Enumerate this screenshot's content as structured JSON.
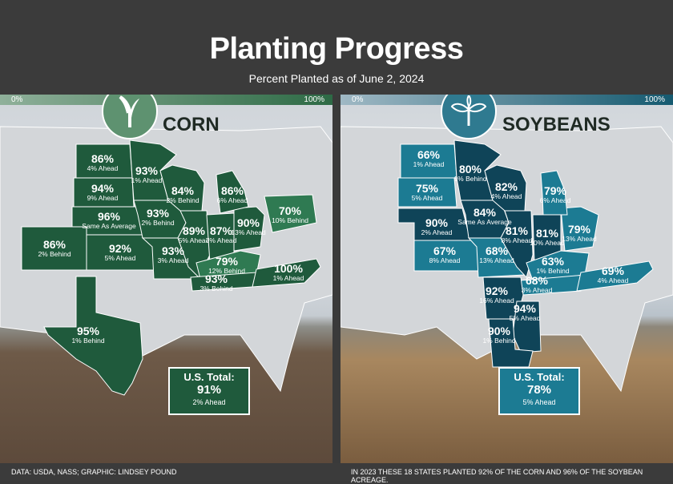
{
  "header": {
    "title": "Planting Progress",
    "subtitle": "Percent Planted as of June 2, 2024"
  },
  "colors": {
    "corn_dark": "#1f5a3c",
    "corn_light": "#2f7a52",
    "soy_dark": "#0f4458",
    "soy_mid": "#1c7b93",
    "background": "#3b3b3b"
  },
  "corn": {
    "name": "CORN",
    "icon": "corn-sprout-icon",
    "scale_min": "0%",
    "scale_max": "100%",
    "states": [
      {
        "pct": "86%",
        "change": "4% Ahead",
        "shade": "dark"
      },
      {
        "pct": "94%",
        "change": "9% Ahead",
        "shade": "dark"
      },
      {
        "pct": "96%",
        "change": "Same As Average",
        "shade": "dark"
      },
      {
        "pct": "92%",
        "change": "5% Ahead",
        "shade": "dark"
      },
      {
        "pct": "86%",
        "change": "2% Behind",
        "shade": "dark"
      },
      {
        "pct": "93%",
        "change": "1% Ahead",
        "shade": "dark"
      },
      {
        "pct": "93%",
        "change": "2% Behind",
        "shade": "dark"
      },
      {
        "pct": "93%",
        "change": "3% Ahead",
        "shade": "dark"
      },
      {
        "pct": "84%",
        "change": "2% Behind",
        "shade": "dark"
      },
      {
        "pct": "89%",
        "change": "5% Ahead",
        "shade": "dark"
      },
      {
        "pct": "87%",
        "change": "7% Ahead",
        "shade": "dark"
      },
      {
        "pct": "90%",
        "change": "13% Ahead",
        "shade": "dark"
      },
      {
        "pct": "86%",
        "change": "6% Ahead",
        "shade": "dark"
      },
      {
        "pct": "70%",
        "change": "10% Behind",
        "shade": "light"
      },
      {
        "pct": "79%",
        "change": "12% Behind",
        "shade": "light"
      },
      {
        "pct": "93%",
        "change": "3% Behind",
        "shade": "dark"
      },
      {
        "pct": "100%",
        "change": "1% Ahead",
        "shade": "dark"
      },
      {
        "pct": "95%",
        "change": "1% Behind",
        "shade": "dark"
      }
    ],
    "total": {
      "label": "U.S. Total:",
      "pct": "91%",
      "change": "2% Ahead"
    }
  },
  "soybeans": {
    "name": "SOYBEANS",
    "icon": "soybean-plant-icon",
    "scale_min": "0%",
    "scale_max": "100%",
    "states": [
      {
        "pct": "66%",
        "change": "1% Ahead",
        "shade": "mid"
      },
      {
        "pct": "75%",
        "change": "5% Ahead",
        "shade": "mid"
      },
      {
        "pct": "90%",
        "change": "2% Ahead",
        "shade": "dark"
      },
      {
        "pct": "67%",
        "change": "8% Ahead",
        "shade": "mid"
      },
      {
        "pct": "80%",
        "change": "1% Behind",
        "shade": "dark"
      },
      {
        "pct": "84%",
        "change": "Same As Average",
        "shade": "dark"
      },
      {
        "pct": "68%",
        "change": "13% Ahead",
        "shade": "mid"
      },
      {
        "pct": "82%",
        "change": "4% Ahead",
        "shade": "dark"
      },
      {
        "pct": "81%",
        "change": "8% Ahead",
        "shade": "dark"
      },
      {
        "pct": "81%",
        "change": "10% Ahead",
        "shade": "dark"
      },
      {
        "pct": "79%",
        "change": "13% Ahead",
        "shade": "mid"
      },
      {
        "pct": "79%",
        "change": "6% Ahead",
        "shade": "mid"
      },
      {
        "pct": "63%",
        "change": "1% Behind",
        "shade": "mid"
      },
      {
        "pct": "68%",
        "change": "3% Ahead",
        "shade": "mid"
      },
      {
        "pct": "69%",
        "change": "4% Ahead",
        "shade": "mid"
      },
      {
        "pct": "92%",
        "change": "16% Ahead",
        "shade": "dark"
      },
      {
        "pct": "94%",
        "change": "5% Ahead",
        "shade": "dark"
      },
      {
        "pct": "90%",
        "change": "1% Behind",
        "shade": "dark"
      }
    ],
    "total": {
      "label": "U.S. Total:",
      "pct": "78%",
      "change": "5% Ahead"
    }
  },
  "footer": {
    "credit": "DATA: USDA, NASS; GRAPHIC: LINDSEY POUND",
    "note": "IN 2023 THESE 18 STATES PLANTED 92% OF THE CORN AND 96% OF THE SOYBEAN ACREAGE."
  }
}
